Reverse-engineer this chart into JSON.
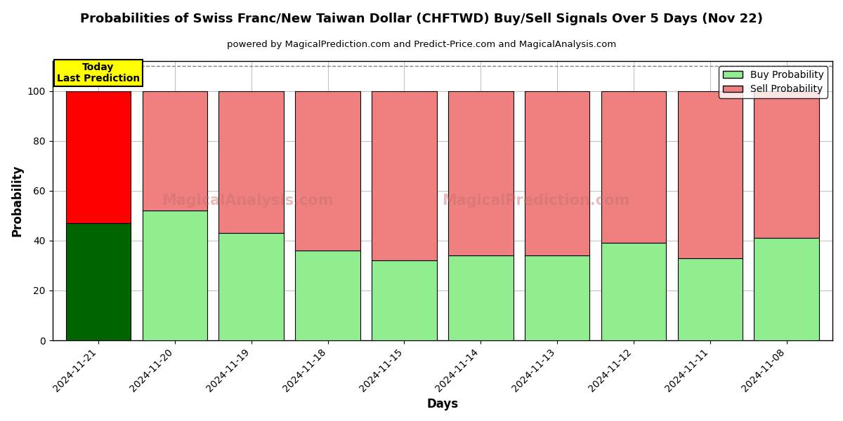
{
  "title": "Probabilities of Swiss Franc/New Taiwan Dollar (CHFTWD) Buy/Sell Signals Over 5 Days (Nov 22)",
  "subtitle": "powered by MagicalPrediction.com and Predict-Price.com and MagicalAnalysis.com",
  "xlabel": "Days",
  "ylabel": "Probability",
  "categories": [
    "2024-11-21",
    "2024-11-20",
    "2024-11-19",
    "2024-11-18",
    "2024-11-15",
    "2024-11-14",
    "2024-11-13",
    "2024-11-12",
    "2024-11-11",
    "2024-11-08"
  ],
  "buy_values": [
    47,
    52,
    43,
    36,
    32,
    34,
    34,
    39,
    33,
    41
  ],
  "sell_values": [
    53,
    48,
    57,
    64,
    68,
    66,
    66,
    61,
    67,
    59
  ],
  "today_buy_color": "#006400",
  "today_sell_color": "#FF0000",
  "other_buy_color": "#90EE90",
  "other_sell_color": "#F08080",
  "bar_edge_color": "#000000",
  "today_label_bg": "#FFFF00",
  "today_label_text": "Today\nLast Prediction",
  "legend_buy": "Buy Probability",
  "legend_sell": "Sell Probability",
  "ylim": [
    0,
    112
  ],
  "dashed_line_y": 110,
  "watermark1": "MagicalAnalysis.com",
  "watermark2": "MagicalPrediction.com",
  "figsize": [
    12.0,
    6.0
  ],
  "dpi": 100
}
